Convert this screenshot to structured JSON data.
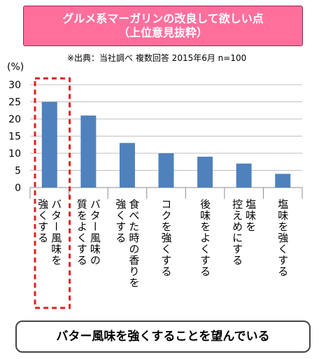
{
  "title": {
    "line1": "グルメ系マーガリンの改良して欲しい点",
    "line2": "（上位意見抜粋）"
  },
  "source_note": "※出典：当社調べ 複数回答 2015年6月 n=100",
  "footer_text": "バター風味を強くすることを望んでいる",
  "colors": {
    "bar": "#4f81bd",
    "title_bg": "#ff6f9c",
    "highlight": "#e0201d"
  },
  "chart_data": {
    "type": "bar",
    "ylabel": "(%)",
    "ylim": [
      0,
      30
    ],
    "yticks": [
      0,
      5,
      10,
      15,
      20,
      25,
      30
    ],
    "grid": true,
    "categories": [
      [
        "バター風味を",
        "強くする"
      ],
      [
        "バター風味の",
        "質をよくする"
      ],
      [
        "食べた時の香りを",
        "強くする"
      ],
      [
        "コクを強くする"
      ],
      [
        "後味をよくする"
      ],
      [
        "塩味を",
        "控えめにする"
      ],
      [
        "塩味を強くする"
      ]
    ],
    "values": [
      25,
      21,
      13,
      10,
      9,
      7,
      4
    ],
    "highlighted_category_index": 0
  }
}
